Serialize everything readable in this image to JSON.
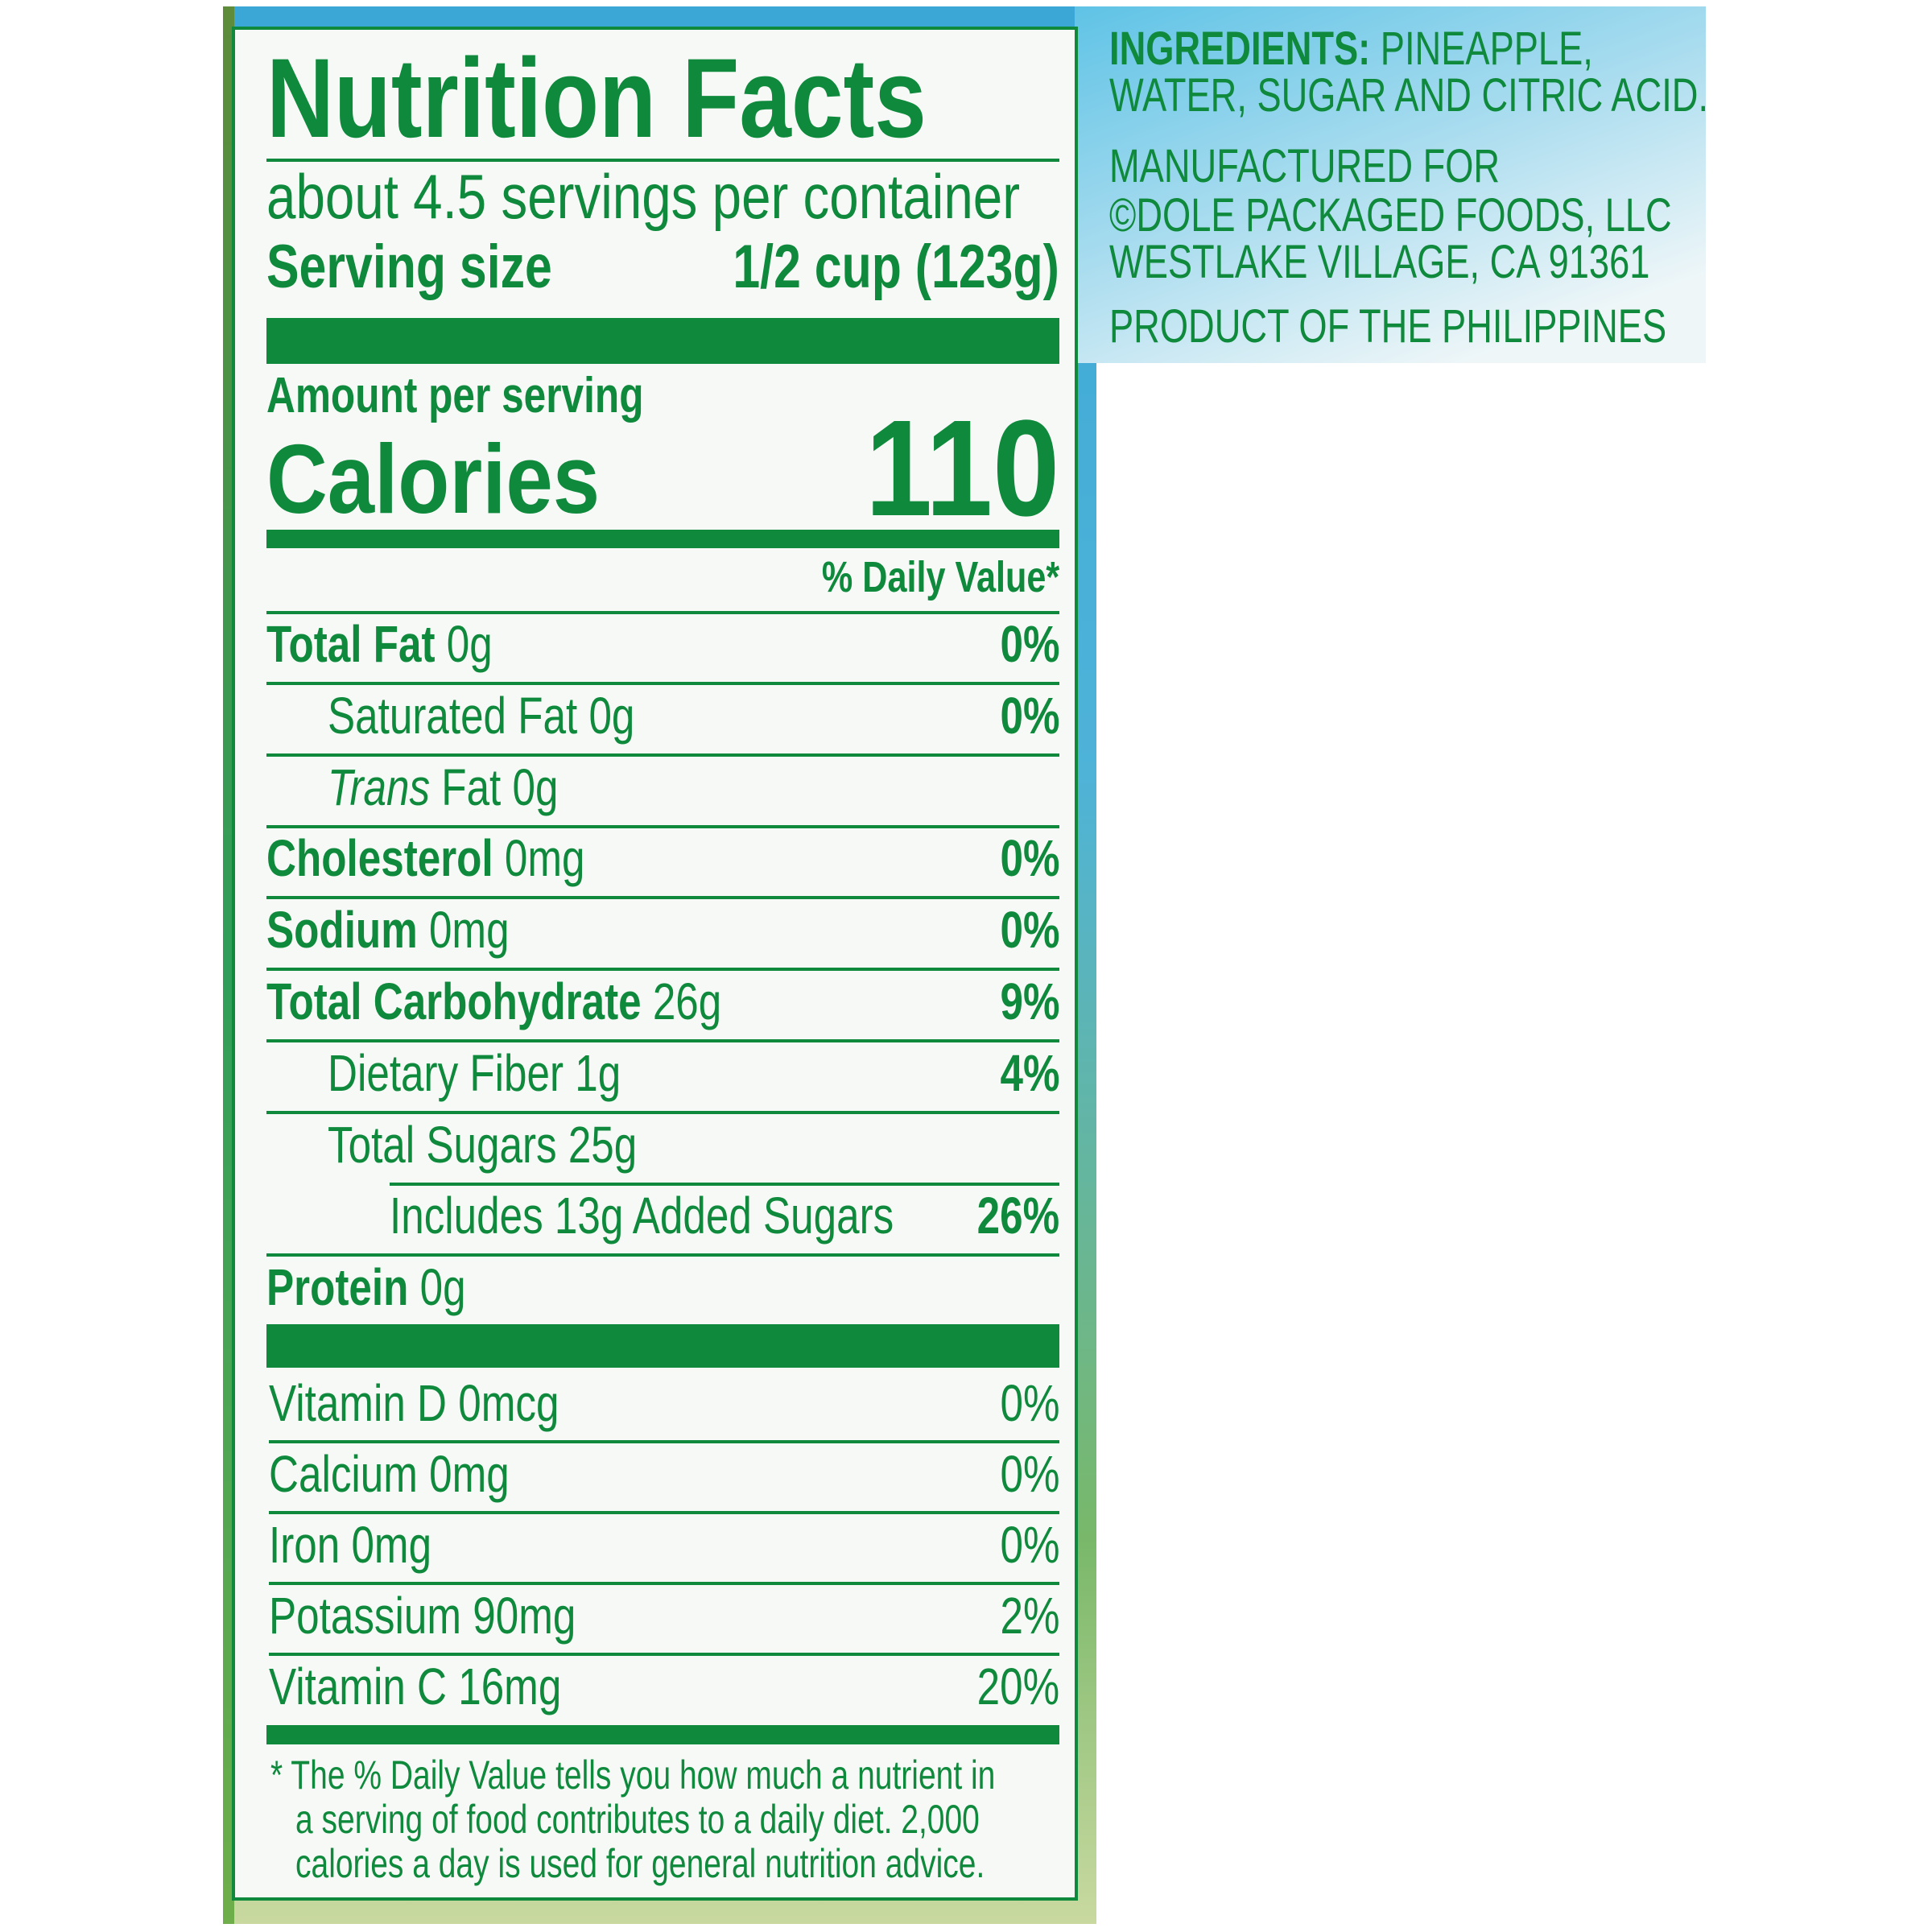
{
  "colors": {
    "label_green": "#0f8a3c",
    "background_blue": "#4fb3d8"
  },
  "label": {
    "title": "Nutrition Facts",
    "servings": "about 4.5 servings per container",
    "serving_size_label": "Serving size",
    "serving_size_value": "1/2 cup (123g)",
    "amount_per_serving": "Amount per serving",
    "calories_label": "Calories",
    "calories_value": "110",
    "daily_value_header": "% Daily Value*",
    "nutrients": [
      {
        "name": "Total Fat",
        "amount": "0g",
        "dv": "0%",
        "indent": 0,
        "bold": true
      },
      {
        "name": "Saturated Fat 0g",
        "amount": "",
        "dv": "0%",
        "indent": 1,
        "bold": false
      },
      {
        "italic": "Trans",
        "name": " Fat 0g",
        "amount": "",
        "dv": "",
        "indent": 1,
        "bold": false
      },
      {
        "name": "Cholesterol",
        "amount": "0mg",
        "dv": "0%",
        "indent": 0,
        "bold": true
      },
      {
        "name": "Sodium",
        "amount": "0mg",
        "dv": "0%",
        "indent": 0,
        "bold": true
      },
      {
        "name": "Total Carbohydrate",
        "amount": "26g",
        "dv": "9%",
        "indent": 0,
        "bold": true
      },
      {
        "name": "Dietary Fiber 1g",
        "amount": "",
        "dv": "4%",
        "indent": 1,
        "bold": false
      },
      {
        "name": "Total Sugars 25g",
        "amount": "",
        "dv": "",
        "indent": 1,
        "bold": false
      },
      {
        "name": "Includes 13g Added Sugars",
        "amount": "",
        "dv": "26%",
        "indent": 2,
        "bold": false
      },
      {
        "name": "Protein",
        "amount": "0g",
        "dv": "",
        "indent": 0,
        "bold": true
      }
    ],
    "vitamins": [
      {
        "name": "Vitamin D 0mcg",
        "dv": "0%"
      },
      {
        "name": "Calcium 0mg",
        "dv": "0%"
      },
      {
        "name": "Iron 0mg",
        "dv": "0%"
      },
      {
        "name": "Potassium 90mg",
        "dv": "2%"
      },
      {
        "name": "Vitamin C 16mg",
        "dv": "20%"
      }
    ],
    "footnote": [
      "* The % Daily Value tells you how much a nutrient in",
      "a serving of food contributes to a daily diet. 2,000",
      "calories a day is used for general nutrition advice."
    ]
  },
  "side": {
    "ingredients_label": "INGREDIENTS:",
    "ingredients_line1": " PINEAPPLE,",
    "ingredients_line2": "WATER, SUGAR AND CITRIC ACID.",
    "manufacturer": [
      "MANUFACTURED FOR",
      "©DOLE PACKAGED FOODS, LLC",
      "WESTLAKE VILLAGE, CA 91361"
    ],
    "origin": "PRODUCT OF THE PHILIPPINES"
  }
}
